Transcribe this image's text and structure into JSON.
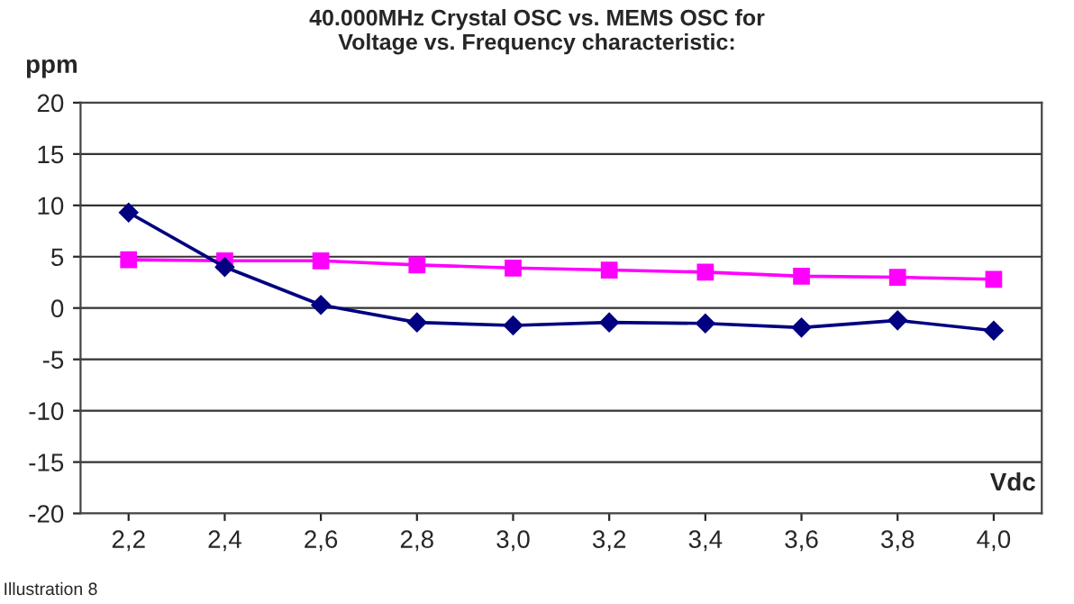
{
  "chart_data": {
    "type": "line",
    "title": "40.000MHz Crystal OSC vs. MEMS OSC for\nVoltage vs. Frequency characteristic:",
    "xlabel": "Vdc",
    "ylabel": "ppm",
    "categories": [
      "2,2",
      "2,4",
      "2,6",
      "2,8",
      "3,0",
      "3,2",
      "3,4",
      "3,6",
      "3,8",
      "4,0"
    ],
    "series": [
      {
        "color": "#000080",
        "marker": "diamond",
        "values": [
          9.3,
          4.0,
          0.3,
          -1.4,
          -1.7,
          -1.4,
          -1.5,
          -1.9,
          -1.2,
          -2.2
        ]
      },
      {
        "color": "#ff00ff",
        "marker": "square",
        "values": [
          4.7,
          4.6,
          4.6,
          4.2,
          3.9,
          3.7,
          3.5,
          3.1,
          3.0,
          2.8
        ]
      }
    ],
    "ylim": [
      -20,
      20
    ],
    "yticks": [
      -20,
      -15,
      -10,
      -5,
      0,
      5,
      10,
      15,
      20
    ],
    "grid": "y",
    "legend": false,
    "annotations": [
      "Illustration 8"
    ]
  }
}
